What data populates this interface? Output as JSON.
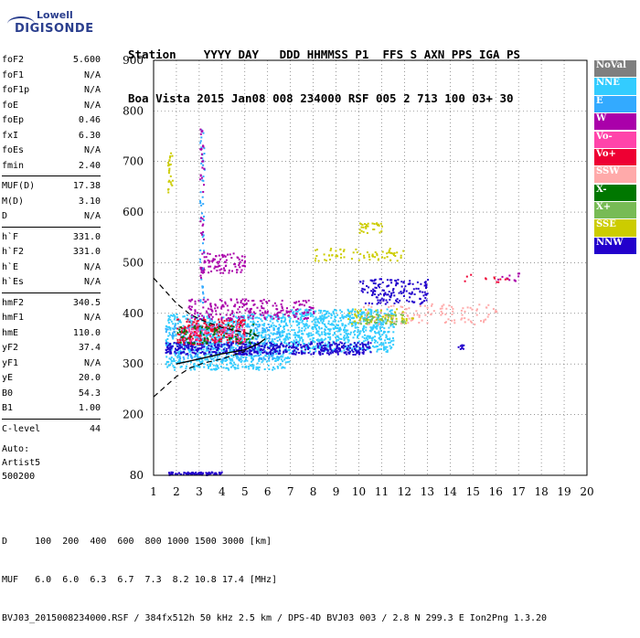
{
  "logo": {
    "line1": "Lowell",
    "line2": "DIGISONDE"
  },
  "header": {
    "labels": [
      "Station",
      "YYYY",
      "DAY",
      "DDD",
      "HHMMSS",
      "P1",
      "FFS",
      "S",
      "AXN",
      "PPS",
      "IGA",
      "PS"
    ],
    "values": [
      "Boa Vista",
      "2015",
      "Jan08",
      "008",
      "234000",
      "RSF",
      "005",
      "2",
      "713",
      "100",
      "03+",
      "30"
    ]
  },
  "params_groups": [
    [
      {
        "name": "foF2",
        "value": "5.600"
      },
      {
        "name": "foF1",
        "value": "N/A"
      },
      {
        "name": "foF1p",
        "value": "N/A"
      },
      {
        "name": "foE",
        "value": "N/A"
      },
      {
        "name": "foEp",
        "value": "0.46"
      },
      {
        "name": "fxI",
        "value": "6.30"
      },
      {
        "name": "foEs",
        "value": "N/A"
      },
      {
        "name": "fmin",
        "value": "2.40"
      }
    ],
    [
      {
        "name": "MUF(D)",
        "value": "17.38"
      },
      {
        "name": "M(D)",
        "value": "3.10"
      },
      {
        "name": "D",
        "value": "N/A"
      }
    ],
    [
      {
        "name": "h`F",
        "value": "331.0"
      },
      {
        "name": "h`F2",
        "value": "331.0"
      },
      {
        "name": "h`E",
        "value": "N/A"
      },
      {
        "name": "h`Es",
        "value": "N/A"
      }
    ],
    [
      {
        "name": "hmF2",
        "value": "340.5"
      },
      {
        "name": "hmF1",
        "value": "N/A"
      },
      {
        "name": "hmE",
        "value": "110.0"
      },
      {
        "name": "yF2",
        "value": "37.4"
      },
      {
        "name": "yF1",
        "value": "N/A"
      },
      {
        "name": "yE",
        "value": "20.0"
      },
      {
        "name": "B0",
        "value": "54.3"
      },
      {
        "name": "B1",
        "value": "1.00"
      }
    ],
    [
      {
        "name": "C-level",
        "value": "44"
      }
    ]
  ],
  "auto": {
    "line1": "Auto:",
    "line2": "Artist5",
    "line3": "500200"
  },
  "footer": {
    "d_line": "D     100  200  400  600  800 1000 1500 3000 [km]",
    "muf_line": "MUF   6.0  6.0  6.3  6.7  7.3  8.2 10.8 17.4 [MHz]",
    "file_line": "BVJ03_2015008234000.RSF / 384fx512h 50 kHz 2.5 km / DPS-4D BVJ03 003 / 2.8 N 299.3 E Ion2Png 1.3.20"
  },
  "legend": [
    {
      "label": "NoVal",
      "color": "#7f7f7f"
    },
    {
      "label": "NNE",
      "color": "#33ccff"
    },
    {
      "label": "E",
      "color": "#33aaff"
    },
    {
      "label": "W",
      "color": "#aa00aa"
    },
    {
      "label": "Vo-",
      "color": "#ff44aa"
    },
    {
      "label": "Vo+",
      "color": "#ee0033"
    },
    {
      "label": "SSW",
      "color": "#ffaaaa"
    },
    {
      "label": "X-",
      "color": "#007700"
    },
    {
      "label": "X+",
      "color": "#77bb55"
    },
    {
      "label": "SSE",
      "color": "#cccc00"
    },
    {
      "label": "NNW",
      "color": "#2200cc"
    }
  ],
  "chart_data": {
    "type": "scatter",
    "xlim": [
      1,
      20
    ],
    "ylim": [
      80,
      900
    ],
    "x_ticks": [
      "1",
      "2",
      "3",
      "4",
      "5",
      "6",
      "7",
      "8",
      "9",
      "10",
      "11",
      "12",
      "13",
      "14",
      "15",
      "16",
      "17",
      "18",
      "19",
      "20"
    ],
    "y_ticks": [
      "80",
      "200",
      "300",
      "400",
      "500",
      "600",
      "700",
      "800",
      "900"
    ],
    "grid": true,
    "clusters": [
      {
        "color": "#33ccff",
        "x": [
          1.5,
          7.0
        ],
        "y": [
          290,
          400
        ],
        "n": 900
      },
      {
        "color": "#33ccff",
        "x": [
          7.0,
          11.5
        ],
        "y": [
          325,
          410
        ],
        "n": 700
      },
      {
        "color": "#33aaff",
        "x": [
          1.5,
          6.5
        ],
        "y": [
          310,
          380
        ],
        "n": 300
      },
      {
        "color": "#2200cc",
        "x": [
          1.5,
          10.5
        ],
        "y": [
          320,
          345
        ],
        "n": 500
      },
      {
        "color": "#2200cc",
        "x": [
          10.0,
          13.0
        ],
        "y": [
          420,
          470
        ],
        "n": 160
      },
      {
        "color": "#2200cc",
        "x": [
          1.6,
          4.0
        ],
        "y": [
          82,
          88
        ],
        "n": 80
      },
      {
        "color": "#ee0033",
        "x": [
          2.0,
          5.0
        ],
        "y": [
          340,
          390
        ],
        "n": 220
      },
      {
        "color": "#aa00aa",
        "x": [
          2.5,
          8.0
        ],
        "y": [
          390,
          430
        ],
        "n": 220
      },
      {
        "color": "#aa00aa",
        "x": [
          3.0,
          5.0
        ],
        "y": [
          480,
          520
        ],
        "n": 90
      },
      {
        "color": "#007700",
        "x": [
          2.0,
          5.5
        ],
        "y": [
          340,
          380
        ],
        "n": 90
      },
      {
        "color": "#ffaaaa",
        "x": [
          10.0,
          16.0
        ],
        "y": [
          380,
          420
        ],
        "n": 110
      },
      {
        "color": "#cccc00",
        "x": [
          8.0,
          12.0
        ],
        "y": [
          505,
          530
        ],
        "n": 70
      },
      {
        "color": "#cccc00",
        "x": [
          10.0,
          11.0
        ],
        "y": [
          560,
          580
        ],
        "n": 30
      },
      {
        "color": "#cccc00",
        "x": [
          1.6,
          1.8
        ],
        "y": [
          640,
          720
        ],
        "n": 25
      },
      {
        "color": "#cccc00",
        "x": [
          9.5,
          12.5
        ],
        "y": [
          380,
          410
        ],
        "n": 60
      },
      {
        "color": "#ff44aa",
        "x": [
          2.5,
          5.0
        ],
        "y": [
          345,
          380
        ],
        "n": 60
      },
      {
        "color": "#77bb55",
        "x": [
          10.0,
          12.0
        ],
        "y": [
          380,
          400
        ],
        "n": 40
      },
      {
        "color": "#33aaff",
        "x": [
          3.0,
          3.2
        ],
        "y": [
          420,
          770
        ],
        "n": 50
      },
      {
        "color": "#aa00aa",
        "x": [
          3.0,
          3.2
        ],
        "y": [
          460,
          770
        ],
        "n": 40
      },
      {
        "color": "#2200cc",
        "x": [
          14.2,
          14.6
        ],
        "y": [
          330,
          340
        ],
        "n": 8
      },
      {
        "color": "#aa00aa",
        "x": [
          16.0,
          17.0
        ],
        "y": [
          465,
          490
        ],
        "n": 12
      },
      {
        "color": "#ee0033",
        "x": [
          14.5,
          16.5
        ],
        "y": [
          460,
          480
        ],
        "n": 12
      }
    ],
    "profile_solid": [
      [
        2.0,
        300
      ],
      [
        3.0,
        310
      ],
      [
        4.0,
        320
      ],
      [
        5.0,
        328
      ],
      [
        5.6,
        340
      ],
      [
        5.9,
        350
      ]
    ],
    "profile_dashed_upper": [
      [
        1.0,
        470
      ],
      [
        1.5,
        445
      ],
      [
        2.0,
        420
      ],
      [
        2.6,
        398
      ],
      [
        3.2,
        385
      ],
      [
        4.0,
        372
      ],
      [
        5.0,
        362
      ],
      [
        5.6,
        355
      ]
    ],
    "profile_dashed_lower": [
      [
        1.0,
        235
      ],
      [
        1.5,
        255
      ],
      [
        2.0,
        275
      ],
      [
        2.6,
        292
      ],
      [
        3.2,
        302
      ],
      [
        4.0,
        310
      ],
      [
        5.0,
        325
      ]
    ]
  }
}
